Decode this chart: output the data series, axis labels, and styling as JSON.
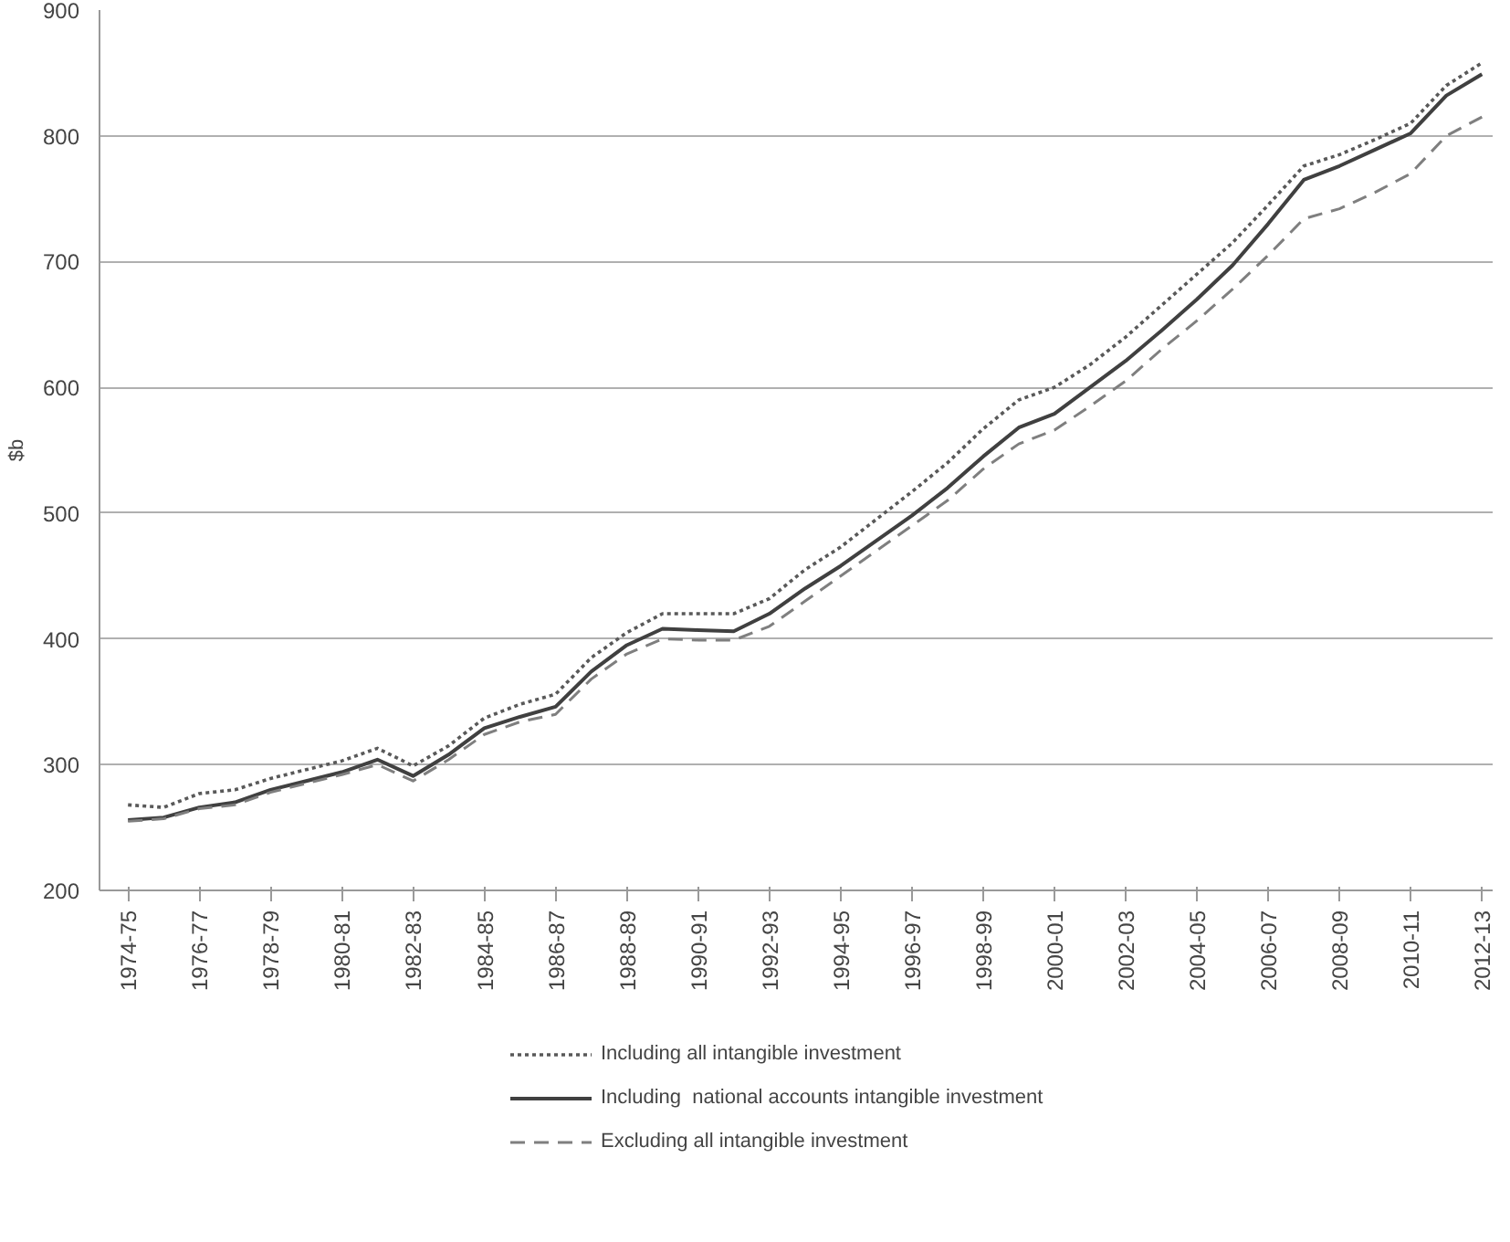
{
  "chart_data": {
    "type": "line",
    "ylabel": "$b",
    "categories": [
      "1974-75",
      null,
      "1976-77",
      null,
      "1978-79",
      null,
      "1980-81",
      null,
      "1982-83",
      null,
      "1984-85",
      null,
      "1986-87",
      null,
      "1988-89",
      null,
      "1990-91",
      null,
      "1992-93",
      null,
      "1994-95",
      null,
      "1996-97",
      null,
      "1998-99",
      null,
      "2000-01",
      null,
      "2002-03",
      null,
      "2004-05",
      null,
      "2006-07",
      null,
      "2008-09",
      null,
      "2010-11",
      null,
      "2012-13"
    ],
    "series": [
      {
        "name": "Including all intangible investment",
        "color": "#595959",
        "line_style": "dotted",
        "values": [
          268,
          266,
          277,
          280,
          289,
          296,
          303,
          313,
          299,
          315,
          337,
          348,
          356,
          385,
          405,
          420,
          420,
          420,
          432,
          455,
          473,
          495,
          517,
          540,
          567,
          590,
          600,
          618,
          640,
          665,
          690,
          715,
          745,
          776,
          785,
          797,
          810,
          840,
          858
        ]
      },
      {
        "name": "Including  national accounts intangible investment",
        "color": "#404040",
        "line_style": "solid",
        "values": [
          256,
          258,
          266,
          270,
          280,
          287,
          294,
          304,
          291,
          308,
          329,
          338,
          346,
          374,
          395,
          408,
          407,
          406,
          420,
          440,
          458,
          478,
          498,
          520,
          545,
          568,
          579,
          600,
          621,
          645,
          670,
          697,
          730,
          765,
          776,
          789,
          802,
          832,
          849
        ]
      },
      {
        "name": "Excluding all intangible investment",
        "color": "#7f7f7f",
        "line_style": "dashed",
        "values": [
          255,
          257,
          265,
          268,
          278,
          285,
          292,
          300,
          287,
          304,
          324,
          334,
          340,
          368,
          388,
          400,
          399,
          399,
          410,
          430,
          450,
          470,
          490,
          510,
          535,
          555,
          566,
          585,
          605,
          630,
          653,
          678,
          705,
          734,
          742,
          755,
          770,
          800,
          815
        ]
      }
    ],
    "ylim": [
      200,
      900
    ],
    "yticks": [
      200,
      300,
      400,
      500,
      600,
      700,
      800,
      900
    ],
    "grid": "y",
    "legend": "bottom"
  }
}
